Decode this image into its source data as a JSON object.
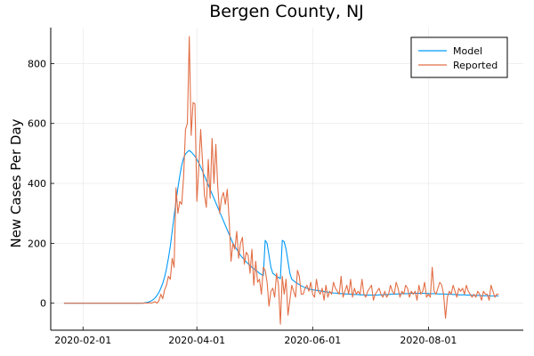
{
  "chart_data": {
    "type": "line",
    "title": "Bergen County, NJ",
    "xlabel": "",
    "ylabel": "New Cases Per Day",
    "x_start": "2020-01-22",
    "xlim": [
      "2020-01-15",
      "2020-09-20"
    ],
    "ylim": [
      -90,
      920
    ],
    "x_ticks": [
      "2020-02-01",
      "2020-04-01",
      "2020-06-01",
      "2020-08-01"
    ],
    "y_ticks": [
      0,
      200,
      400,
      600,
      800
    ],
    "grid": true,
    "legend_position": "top-right",
    "series": [
      {
        "name": "Model",
        "color": "#009af9",
        "values": [
          0,
          0,
          0,
          0,
          0,
          0,
          0,
          0,
          0,
          0,
          0,
          0,
          0,
          0,
          0,
          0,
          0,
          0,
          0,
          0,
          0,
          0,
          0,
          0,
          0,
          0,
          0,
          0,
          0,
          0,
          0,
          0,
          0,
          0,
          0,
          0,
          0,
          0,
          0,
          0,
          0,
          0,
          1,
          2,
          3,
          5,
          8,
          12,
          18,
          26,
          36,
          50,
          66,
          88,
          115,
          150,
          190,
          240,
          290,
          340,
          385,
          425,
          460,
          485,
          498,
          505,
          510,
          505,
          498,
          490,
          480,
          468,
          455,
          440,
          425,
          410,
          395,
          380,
          365,
          350,
          335,
          320,
          305,
          290,
          275,
          260,
          245,
          230,
          215,
          200,
          190,
          180,
          170,
          160,
          152,
          145,
          138,
          132,
          126,
          120,
          115,
          110,
          105,
          100,
          96,
          92,
          210,
          200,
          160,
          120,
          100,
          95,
          90,
          86,
          82,
          210,
          205,
          180,
          140,
          100,
          80,
          75,
          70,
          66,
          62,
          58,
          55,
          52,
          50,
          48,
          46,
          45,
          44,
          43,
          42,
          41,
          40,
          39,
          38,
          37,
          36,
          35,
          34,
          34,
          33,
          33,
          32,
          32,
          31,
          31,
          30,
          30,
          30,
          29,
          29,
          29,
          28,
          28,
          28,
          27,
          27,
          27,
          27,
          27,
          27,
          27,
          28,
          28,
          28,
          29,
          29,
          29,
          30,
          30,
          30,
          31,
          31,
          31,
          32,
          32,
          32,
          32,
          33,
          33,
          33,
          33,
          33,
          33,
          33,
          33,
          33,
          33,
          32,
          32,
          32,
          32,
          32,
          31,
          31,
          31,
          31,
          30,
          30,
          30,
          30,
          29,
          29,
          29,
          28,
          28,
          28,
          28,
          27,
          27,
          27,
          27,
          26,
          26,
          26,
          26,
          25,
          25,
          25,
          25,
          25,
          24,
          24,
          24,
          24,
          24
        ]
      },
      {
        "name": "Reported",
        "color": "#e26f46",
        "values": [
          0,
          0,
          0,
          0,
          0,
          0,
          0,
          0,
          0,
          0,
          0,
          0,
          0,
          0,
          0,
          0,
          0,
          0,
          0,
          0,
          0,
          0,
          0,
          0,
          0,
          0,
          0,
          0,
          0,
          0,
          0,
          0,
          0,
          0,
          0,
          0,
          0,
          0,
          0,
          0,
          0,
          0,
          0,
          1,
          0,
          2,
          0,
          3,
          5,
          0,
          8,
          30,
          15,
          45,
          60,
          90,
          80,
          150,
          120,
          385,
          300,
          340,
          330,
          420,
          580,
          600,
          890,
          560,
          670,
          665,
          340,
          450,
          580,
          470,
          360,
          320,
          480,
          350,
          550,
          400,
          530,
          390,
          300,
          350,
          370,
          330,
          380,
          280,
          140,
          200,
          180,
          240,
          150,
          200,
          220,
          130,
          170,
          160,
          100,
          180,
          60,
          140,
          70,
          80,
          30,
          120,
          110,
          70,
          -10,
          40,
          50,
          20,
          100,
          60,
          -70,
          90,
          30,
          80,
          -40,
          10,
          60,
          40,
          20,
          110,
          90,
          30,
          30,
          50,
          60,
          40,
          70,
          30,
          20,
          80,
          40,
          30,
          50,
          10,
          60,
          20,
          40,
          30,
          70,
          50,
          40,
          30,
          90,
          20,
          40,
          60,
          30,
          80,
          20,
          50,
          30,
          40,
          30,
          80,
          30,
          20,
          40,
          50,
          60,
          10,
          30,
          40,
          50,
          30,
          20,
          40,
          20,
          30,
          60,
          40,
          30,
          70,
          50,
          20,
          40,
          30,
          60,
          50,
          20,
          40,
          30,
          40,
          10,
          60,
          30,
          40,
          70,
          20,
          30,
          20,
          120,
          40,
          30,
          50,
          70,
          60,
          30,
          -50,
          20,
          40,
          30,
          60,
          40,
          20,
          50,
          40,
          50,
          30,
          60,
          40,
          30,
          20,
          30,
          20,
          40,
          30,
          10,
          40,
          30,
          30,
          10,
          60,
          40,
          20,
          30,
          30
        ]
      }
    ]
  }
}
